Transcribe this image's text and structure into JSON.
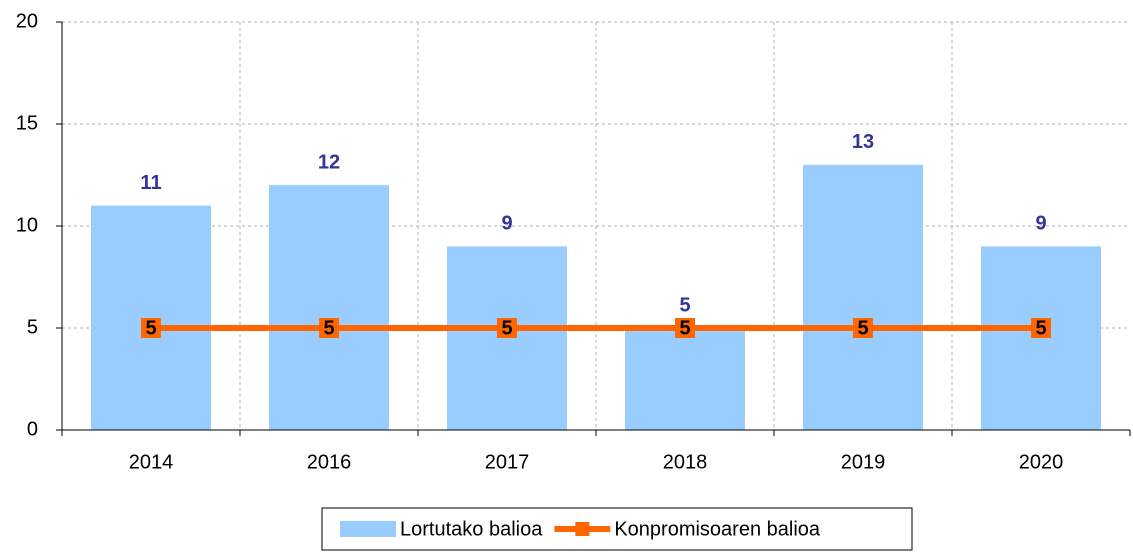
{
  "chart_data": {
    "type": "bar",
    "categories": [
      "2014",
      "2016",
      "2017",
      "2018",
      "2019",
      "2020"
    ],
    "series": [
      {
        "name": "Lortutako balioa",
        "type": "bar",
        "color": "#99ccff",
        "label_color": "#333399",
        "values": [
          11,
          12,
          9,
          5,
          13,
          9
        ]
      },
      {
        "name": "Konpromisoaren balioa",
        "type": "line",
        "color": "#ff6600",
        "label_color": "#000000",
        "values": [
          5,
          5,
          5,
          5,
          5,
          5
        ]
      }
    ],
    "ylim": [
      0,
      20
    ],
    "yticks": [
      0,
      5,
      10,
      15,
      20
    ],
    "grid": true,
    "legend": "bottom"
  }
}
